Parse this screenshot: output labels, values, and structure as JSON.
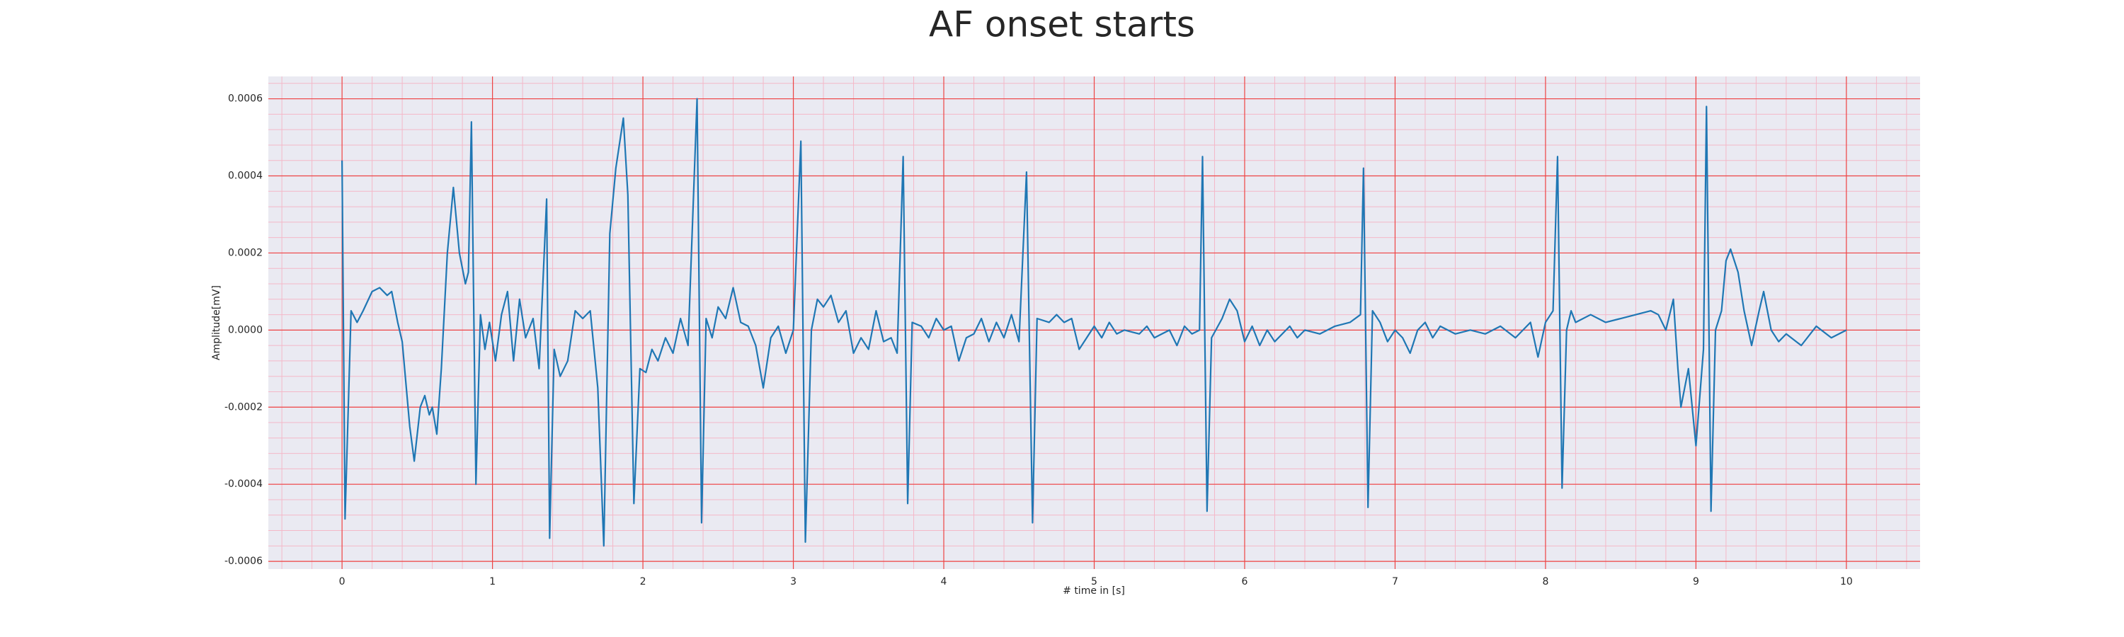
{
  "chart_data": {
    "type": "line",
    "title": "AF onset starts",
    "x_label": "# time in [s]",
    "y_label": "Amplitude[mV]",
    "color": "#1f77b4",
    "grid": true,
    "minor_grid": true,
    "xlim": [
      -0.49,
      10.49
    ],
    "ylim": [
      -0.00062,
      0.000658
    ],
    "xticks": [
      0,
      1,
      2,
      3,
      4,
      5,
      6,
      7,
      8,
      9,
      10
    ],
    "yticks": [
      {
        "value": -0.0006,
        "label": "-0.0006"
      },
      {
        "value": -0.0004,
        "label": "-0.0004"
      },
      {
        "value": -0.0002,
        "label": "-0.0002"
      },
      {
        "value": 0,
        "label": "0.0000"
      },
      {
        "value": 0.0002,
        "label": "0.0002"
      },
      {
        "value": 0.0004,
        "label": "0.0004"
      },
      {
        "value": 0.0006,
        "label": "0.0006"
      }
    ],
    "x": [
      0,
      0.02,
      0.06,
      0.1,
      0.14,
      0.2,
      0.25,
      0.3,
      0.33,
      0.37,
      0.4,
      0.45,
      0.48,
      0.52,
      0.55,
      0.58,
      0.6,
      0.63,
      0.66,
      0.7,
      0.74,
      0.78,
      0.82,
      0.84,
      0.86,
      0.89,
      0.92,
      0.95,
      0.98,
      1.02,
      1.06,
      1.1,
      1.14,
      1.18,
      1.22,
      1.27,
      1.31,
      1.36,
      1.38,
      1.41,
      1.45,
      1.5,
      1.55,
      1.6,
      1.65,
      1.7,
      1.74,
      1.78,
      1.82,
      1.87,
      1.9,
      1.94,
      1.98,
      2.02,
      2.06,
      2.1,
      2.15,
      2.2,
      2.25,
      2.3,
      2.36,
      2.39,
      2.42,
      2.46,
      2.5,
      2.55,
      2.6,
      2.65,
      2.7,
      2.75,
      2.8,
      2.85,
      2.9,
      2.95,
      3.0,
      3.05,
      3.08,
      3.12,
      3.16,
      3.2,
      3.25,
      3.3,
      3.35,
      3.4,
      3.45,
      3.5,
      3.55,
      3.6,
      3.65,
      3.69,
      3.73,
      3.76,
      3.79,
      3.85,
      3.9,
      3.95,
      4.0,
      4.05,
      4.1,
      4.15,
      4.2,
      4.25,
      4.3,
      4.35,
      4.4,
      4.45,
      4.5,
      4.55,
      4.59,
      4.62,
      4.7,
      4.75,
      4.8,
      4.85,
      4.9,
      4.95,
      5.0,
      5.05,
      5.1,
      5.15,
      5.2,
      5.3,
      5.35,
      5.4,
      5.45,
      5.5,
      5.55,
      5.6,
      5.65,
      5.7,
      5.72,
      5.75,
      5.78,
      5.85,
      5.9,
      5.95,
      6.0,
      6.05,
      6.1,
      6.15,
      6.2,
      6.3,
      6.35,
      6.4,
      6.5,
      6.6,
      6.7,
      6.77,
      6.79,
      6.82,
      6.85,
      6.9,
      6.95,
      7.0,
      7.05,
      7.1,
      7.15,
      7.2,
      7.25,
      7.3,
      7.4,
      7.5,
      7.6,
      7.7,
      7.8,
      7.9,
      7.95,
      8.0,
      8.05,
      8.08,
      8.11,
      8.14,
      8.17,
      8.2,
      8.3,
      8.4,
      8.5,
      8.6,
      8.7,
      8.75,
      8.8,
      8.85,
      8.88,
      8.9,
      8.95,
      9.0,
      9.02,
      9.05,
      9.07,
      9.1,
      9.13,
      9.17,
      9.2,
      9.23,
      9.28,
      9.32,
      9.37,
      9.42,
      9.45,
      9.5,
      9.55,
      9.6,
      9.7,
      9.8,
      9.9,
      10.0
    ],
    "values": [
      0.00044,
      -0.00049,
      5e-05,
      2e-05,
      5e-05,
      0.0001,
      0.00011,
      9e-05,
      0.0001,
      2e-05,
      -3e-05,
      -0.00025,
      -0.00034,
      -0.0002,
      -0.00017,
      -0.00022,
      -0.0002,
      -0.00027,
      -0.0001,
      0.0002,
      0.00037,
      0.0002,
      0.00012,
      0.00015,
      0.00054,
      -0.0004,
      4e-05,
      -5e-05,
      2e-05,
      -8e-05,
      4e-05,
      0.0001,
      -8e-05,
      8e-05,
      -2e-05,
      3e-05,
      -0.0001,
      0.00034,
      -0.00054,
      -5e-05,
      -0.00012,
      -8e-05,
      5e-05,
      3e-05,
      5e-05,
      -0.00015,
      -0.00056,
      0.00025,
      0.00042,
      0.00055,
      0.00035,
      -0.00045,
      -0.0001,
      -0.00011,
      -5e-05,
      -8e-05,
      -2e-05,
      -6e-05,
      3e-05,
      -4e-05,
      0.0006,
      -0.0005,
      3e-05,
      -2e-05,
      6e-05,
      3e-05,
      0.00011,
      2e-05,
      1e-05,
      -4e-05,
      -0.00015,
      -2e-05,
      1e-05,
      -6e-05,
      0,
      0.00049,
      -0.00055,
      0,
      8e-05,
      6e-05,
      9e-05,
      2e-05,
      5e-05,
      -6e-05,
      -2e-05,
      -5e-05,
      5e-05,
      -3e-05,
      -2e-05,
      -6e-05,
      0.00045,
      -0.00045,
      2e-05,
      1e-05,
      -2e-05,
      3e-05,
      0,
      1e-05,
      -8e-05,
      -2e-05,
      -1e-05,
      3e-05,
      -3e-05,
      2e-05,
      -2e-05,
      4e-05,
      -3e-05,
      0.00041,
      -0.0005,
      3e-05,
      2e-05,
      4e-05,
      2e-05,
      3e-05,
      -5e-05,
      -2e-05,
      1e-05,
      -2e-05,
      2e-05,
      -1e-05,
      0,
      -1e-05,
      1e-05,
      -2e-05,
      -1e-05,
      0,
      -4e-05,
      1e-05,
      -1e-05,
      0,
      0.00045,
      -0.00047,
      -2e-05,
      3e-05,
      8e-05,
      5e-05,
      -3e-05,
      1e-05,
      -4e-05,
      0,
      -3e-05,
      1e-05,
      -2e-05,
      0,
      -1e-05,
      1e-05,
      2e-05,
      4e-05,
      0.00042,
      -0.00046,
      5e-05,
      2e-05,
      -3e-05,
      0,
      -2e-05,
      -6e-05,
      0,
      2e-05,
      -2e-05,
      1e-05,
      -1e-05,
      0,
      -1e-05,
      1e-05,
      -2e-05,
      2e-05,
      -7e-05,
      2e-05,
      5e-05,
      0.00045,
      -0.00041,
      0,
      5e-05,
      2e-05,
      4e-05,
      2e-05,
      3e-05,
      4e-05,
      5e-05,
      4e-05,
      0,
      8e-05,
      -0.0001,
      -0.0002,
      -0.0001,
      -0.0003,
      -0.0002,
      -5e-05,
      0.00058,
      -0.00047,
      0,
      5e-05,
      0.00018,
      0.00021,
      0.00015,
      5e-05,
      -4e-05,
      5e-05,
      0.0001,
      0,
      -3e-05,
      -1e-05,
      -4e-05,
      1e-05,
      -2e-05,
      0
    ]
  }
}
